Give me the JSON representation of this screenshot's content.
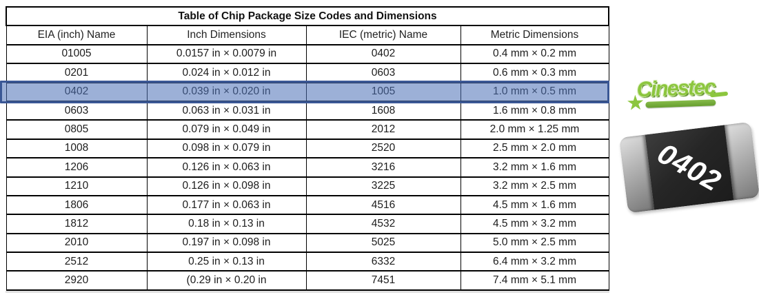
{
  "table": {
    "title": "Table of Chip Package Size Codes and Dimensions",
    "columns": [
      "EIA (inch) Name",
      "Inch Dimensions",
      "IEC (metric) Name",
      "Metric Dimensions"
    ],
    "rows": [
      [
        "01005",
        "0.0157 in × 0.0079 in",
        "0402",
        "0.4 mm × 0.2 mm"
      ],
      [
        "0201",
        "0.024 in × 0.012 in",
        "0603",
        "0.6 mm × 0.3 mm"
      ],
      [
        "0402",
        "0.039 in × 0.020 in",
        "1005",
        "1.0 mm × 0.5 mm"
      ],
      [
        "0603",
        "0.063 in × 0.031 in",
        "1608",
        "1.6 mm × 0.8 mm"
      ],
      [
        "0805",
        "0.079 in × 0.049 in",
        "2012",
        "2.0 mm × 1.25 mm"
      ],
      [
        "1008",
        "0.098 in × 0.079 in",
        "2520",
        "2.5 mm × 2.0 mm"
      ],
      [
        "1206",
        "0.126 in × 0.063 in",
        "3216",
        "3.2 mm × 1.6 mm"
      ],
      [
        "1210",
        "0.126 in × 0.098 in",
        "3225",
        "3.2 mm × 2.5 mm"
      ],
      [
        "1806",
        "0.177 in × 0.063 in",
        "4516",
        "4.5 mm × 1.6 mm"
      ],
      [
        "1812",
        "0.18 in × 0.13 in",
        "4532",
        "4.5 mm × 3.2 mm"
      ],
      [
        "2010",
        "0.197 in × 0.098 in",
        "5025",
        "5.0 mm × 2.5 mm"
      ],
      [
        "2512",
        "0.25 in × 0.13 in",
        "6332",
        "6.4 mm × 3.2 mm"
      ],
      [
        "2920",
        "(0.29 in × 0.20 in",
        "7451",
        "7.4 mm × 5.1 mm"
      ]
    ],
    "highlighted_row_eia": "0402",
    "highlight_fill": "#4B6FB7",
    "highlight_border": "#3A5795"
  },
  "logo": {
    "text": "Cinestec",
    "star_icon": "★",
    "green": "#8CC63E"
  },
  "chip": {
    "label": "0402",
    "body_color": "#262626",
    "terminal_color": "#ADADAD"
  }
}
